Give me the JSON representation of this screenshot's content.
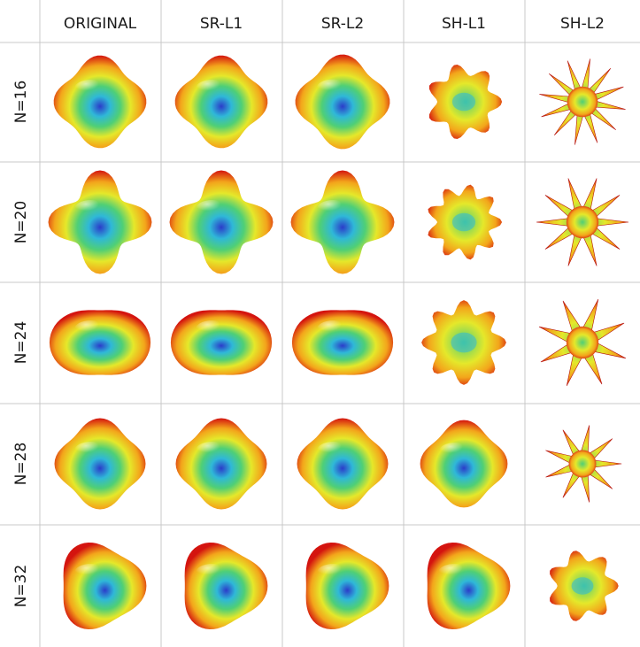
{
  "columns": [
    "ORIGINAL",
    "SR-L1",
    "SR-L2",
    "SH-L1",
    "SH-L2"
  ],
  "rows": [
    "N=16",
    "N=20",
    "N=24",
    "N=28",
    "N=32"
  ],
  "glyphs": [
    {
      "shape": "cube",
      "tilt": -8,
      "scale": 1.0,
      "spikes": 0
    },
    {
      "shape": "cube",
      "tilt": -8,
      "scale": 1.0,
      "spikes": 0
    },
    {
      "shape": "cube",
      "tilt": -8,
      "scale": 1.02,
      "spikes": 0
    },
    {
      "shape": "lobed",
      "tilt": 0,
      "scale": 0.9,
      "spikes": 7
    },
    {
      "shape": "spiky",
      "tilt": 10,
      "scale": 0.95,
      "spikes": 12
    },
    {
      "shape": "cross",
      "tilt": 0,
      "scale": 1.0,
      "spikes": 0
    },
    {
      "shape": "cross",
      "tilt": 0,
      "scale": 1.0,
      "spikes": 0
    },
    {
      "shape": "cross",
      "tilt": 0,
      "scale": 1.0,
      "spikes": 0
    },
    {
      "shape": "lobed",
      "tilt": 10,
      "scale": 0.9,
      "spikes": 9
    },
    {
      "shape": "spiky",
      "tilt": 0,
      "scale": 1.0,
      "spikes": 10
    },
    {
      "shape": "slab",
      "tilt": 30,
      "scale": 1.0,
      "spikes": 0
    },
    {
      "shape": "slab",
      "tilt": 30,
      "scale": 1.0,
      "spikes": 0
    },
    {
      "shape": "slab",
      "tilt": 30,
      "scale": 1.0,
      "spikes": 0
    },
    {
      "shape": "lobed",
      "tilt": 30,
      "scale": 1.0,
      "spikes": 8
    },
    {
      "shape": "spiky",
      "tilt": 20,
      "scale": 1.0,
      "spikes": 8
    },
    {
      "shape": "ring",
      "tilt": 30,
      "scale": 1.0,
      "spikes": 0
    },
    {
      "shape": "ring",
      "tilt": 30,
      "scale": 1.0,
      "spikes": 0
    },
    {
      "shape": "ring",
      "tilt": 30,
      "scale": 1.0,
      "spikes": 0
    },
    {
      "shape": "ring",
      "tilt": 30,
      "scale": 0.96,
      "spikes": 0
    },
    {
      "shape": "spiky",
      "tilt": 0,
      "scale": 0.85,
      "spikes": 9
    },
    {
      "shape": "blob",
      "tilt": 20,
      "scale": 1.0,
      "spikes": 0
    },
    {
      "shape": "blob",
      "tilt": 20,
      "scale": 1.0,
      "spikes": 0
    },
    {
      "shape": "blob",
      "tilt": 20,
      "scale": 1.0,
      "spikes": 0
    },
    {
      "shape": "blob",
      "tilt": 20,
      "scale": 1.0,
      "spikes": 0
    },
    {
      "shape": "lobed",
      "tilt": 0,
      "scale": 0.85,
      "spikes": 7
    }
  ],
  "colors": {
    "outer": "#d4140f",
    "mid1": "#f3a51b",
    "mid2": "#e5e82a",
    "mid3": "#4fcf76",
    "inner1": "#2fb8d8",
    "inner2": "#2b3cc9",
    "grid": "#c9c9c9"
  }
}
